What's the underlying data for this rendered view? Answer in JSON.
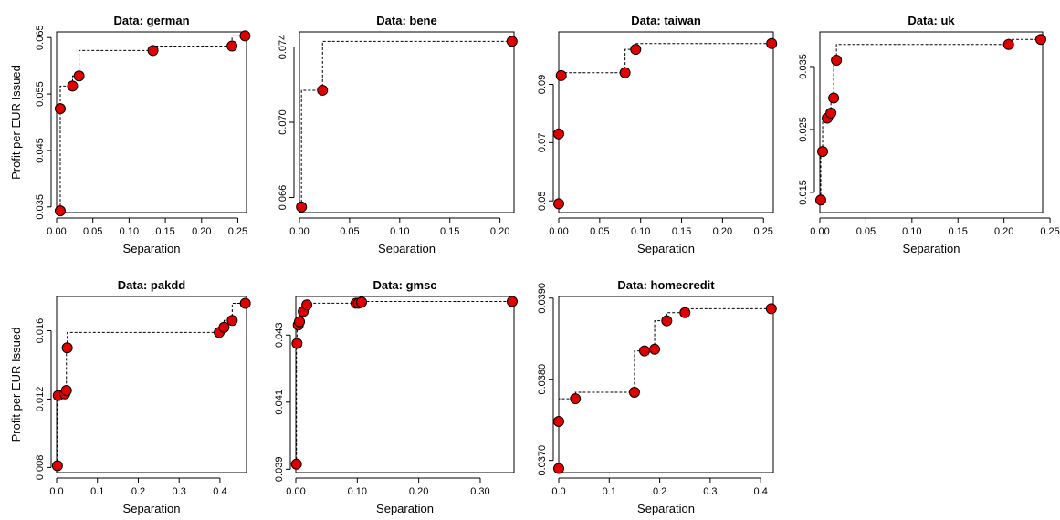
{
  "figure": {
    "point_color": "#e00000",
    "line_style": "dashed-step"
  },
  "chart_data": [
    {
      "type": "scatter",
      "title": "Data: german",
      "xlabel": "Separation",
      "ylabel": "Profit per EUR Issued",
      "xlim": [
        0,
        0.262
      ],
      "ylim": [
        0.034,
        0.066
      ],
      "xticks": [
        0,
        0.05,
        0.1,
        0.15,
        0.2,
        0.25
      ],
      "xtick_labels": [
        "0.00",
        "0.05",
        "0.10",
        "0.15",
        "0.20",
        "0.25"
      ],
      "yticks": [
        0.035,
        0.045,
        0.055,
        0.065
      ],
      "ytick_labels": [
        "0.035",
        "0.045",
        "0.055",
        "0.065"
      ],
      "x": [
        0.005,
        0.005,
        0.022,
        0.031,
        0.133,
        0.242,
        0.26
      ],
      "y": [
        0.0343,
        0.0524,
        0.0564,
        0.0582,
        0.0627,
        0.0635,
        0.0653
      ]
    },
    {
      "type": "scatter",
      "title": "Data: bene",
      "xlabel": "Separation",
      "ylabel": "",
      "xlim": [
        0,
        0.214
      ],
      "ylim": [
        0.0652,
        0.0748
      ],
      "xticks": [
        0,
        0.05,
        0.1,
        0.15,
        0.2
      ],
      "xtick_labels": [
        "0.00",
        "0.05",
        "0.10",
        "0.15",
        "0.20"
      ],
      "yticks": [
        0.066,
        0.07,
        0.074
      ],
      "ytick_labels": [
        "0.066",
        "0.070",
        "0.074"
      ],
      "x": [
        0.002,
        0.023,
        0.212
      ],
      "y": [
        0.0655,
        0.0717,
        0.0743
      ]
    },
    {
      "type": "scatter",
      "title": "Data: taiwan",
      "xlabel": "Separation",
      "ylabel": "",
      "xlim": [
        0,
        0.262
      ],
      "ylim": [
        0.046,
        0.108
      ],
      "xticks": [
        0,
        0.05,
        0.1,
        0.15,
        0.2,
        0.25
      ],
      "xtick_labels": [
        "0.00",
        "0.05",
        "0.10",
        "0.15",
        "0.20",
        "0.25"
      ],
      "yticks": [
        0.05,
        0.07,
        0.09
      ],
      "ytick_labels": [
        "0.05",
        "0.07",
        "0.09"
      ],
      "x": [
        0.0,
        0.0,
        0.003,
        0.081,
        0.094,
        0.26
      ],
      "y": [
        0.049,
        0.073,
        0.093,
        0.094,
        0.102,
        0.104
      ]
    },
    {
      "type": "scatter",
      "title": "Data: uk",
      "xlabel": "Separation",
      "ylabel": "",
      "xlim": [
        0,
        0.242
      ],
      "ylim": [
        0.0118,
        0.0405
      ],
      "xticks": [
        0,
        0.05,
        0.1,
        0.15,
        0.2,
        0.25
      ],
      "xtick_labels": [
        "0.00",
        "0.05",
        "0.10",
        "0.15",
        "0.20",
        "0.25"
      ],
      "yticks": [
        0.015,
        0.025,
        0.035
      ],
      "ytick_labels": [
        "0.015",
        "0.025",
        "0.035"
      ],
      "x": [
        0.001,
        0.003,
        0.008,
        0.012,
        0.015,
        0.018,
        0.205,
        0.24
      ],
      "y": [
        0.0138,
        0.0215,
        0.0268,
        0.0276,
        0.03,
        0.036,
        0.0385,
        0.0393
      ]
    },
    {
      "type": "scatter",
      "title": "Data: pakdd",
      "xlabel": "Separation",
      "ylabel": "Profit per EUR Issued",
      "xlim": [
        0,
        0.465
      ],
      "ylim": [
        0.0077,
        0.018
      ],
      "xticks": [
        0,
        0.1,
        0.2,
        0.3,
        0.4
      ],
      "xtick_labels": [
        "0.0",
        "0.1",
        "0.2",
        "0.3",
        "0.4"
      ],
      "yticks": [
        0.008,
        0.012,
        0.016
      ],
      "ytick_labels": [
        "0.008",
        "0.012",
        "0.016"
      ],
      "x": [
        0.002,
        0.004,
        0.02,
        0.024,
        0.026,
        0.398,
        0.41,
        0.43,
        0.462
      ],
      "y": [
        0.0081,
        0.0122,
        0.0123,
        0.0125,
        0.015,
        0.0159,
        0.0162,
        0.0166,
        0.0176
      ]
    },
    {
      "type": "scatter",
      "title": "Data: gmsc",
      "xlabel": "Separation",
      "ylabel": "",
      "xlim": [
        0,
        0.355
      ],
      "ylim": [
        0.0389,
        0.04415
      ],
      "xticks": [
        0,
        0.1,
        0.2,
        0.3
      ],
      "xtick_labels": [
        "0.00",
        "0.10",
        "0.20",
        "0.30"
      ],
      "yticks": [
        0.039,
        0.041,
        0.043
      ],
      "ytick_labels": [
        "0.039",
        "0.041",
        "0.043"
      ],
      "x": [
        0.001,
        0.002,
        0.004,
        0.006,
        0.012,
        0.018,
        0.098,
        0.102,
        0.107,
        0.352
      ],
      "y": [
        0.03915,
        0.04275,
        0.0433,
        0.0434,
        0.0437,
        0.0439,
        0.04395,
        0.04395,
        0.04398,
        0.044
      ]
    },
    {
      "type": "scatter",
      "title": "Data: homecredit",
      "xlabel": "Separation",
      "ylabel": "",
      "xlim": [
        0,
        0.425
      ],
      "ylim": [
        0.03685,
        0.03902
      ],
      "xticks": [
        0,
        0.1,
        0.2,
        0.3,
        0.4
      ],
      "xtick_labels": [
        "0.0",
        "0.1",
        "0.2",
        "0.3",
        "0.4"
      ],
      "yticks": [
        0.037,
        0.038,
        0.039
      ],
      "ytick_labels": [
        "0.0370",
        "0.0380",
        "0.0390"
      ],
      "x": [
        0.0,
        0.0,
        0.033,
        0.15,
        0.17,
        0.19,
        0.214,
        0.25,
        0.421
      ],
      "y": [
        0.0369,
        0.03748,
        0.03776,
        0.03784,
        0.03835,
        0.03837,
        0.03872,
        0.03882,
        0.03887
      ]
    }
  ]
}
